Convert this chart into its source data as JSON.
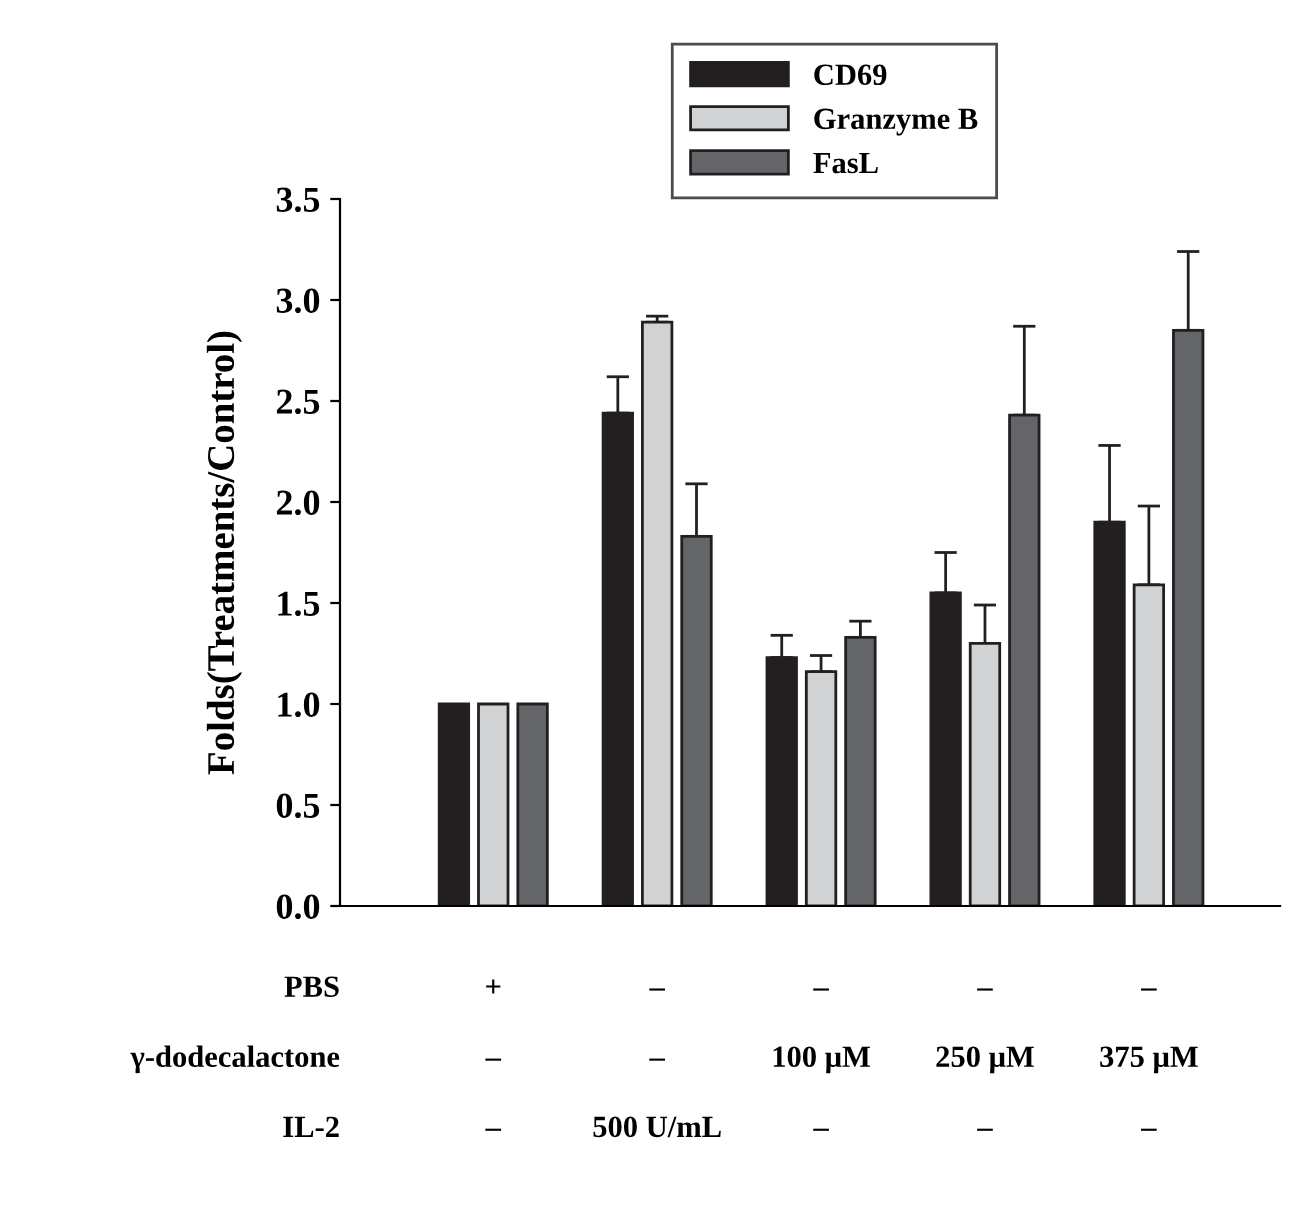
{
  "chart_data": {
    "type": "bar",
    "ylabel": "Folds(Treatments/Control)",
    "categories": [
      "+\n–\n–",
      "–\n–\n500 U/mL",
      "–\n100 μM\n–",
      "–\n250 μM\n–",
      "–\n375 μM\n–"
    ],
    "annotations": [
      "PBS",
      "γ-dodecalactone",
      "IL-2"
    ],
    "series": [
      {
        "name": "CD69",
        "color": "#231f20",
        "values": [
          1.0,
          2.44,
          1.23,
          1.55,
          1.9
        ],
        "errors": [
          null,
          [
            2.44,
            2.62
          ],
          [
            1.23,
            1.34
          ],
          [
            1.55,
            1.75
          ],
          [
            1.9,
            2.28
          ]
        ]
      },
      {
        "name": "Granzyme B",
        "color": "#d1d2d4",
        "values": [
          1.0,
          2.89,
          1.16,
          1.3,
          1.59
        ],
        "errors": [
          null,
          [
            2.89,
            2.92
          ],
          [
            1.16,
            1.24
          ],
          [
            1.3,
            1.49
          ],
          [
            1.59,
            1.98
          ]
        ]
      },
      {
        "name": "FasL",
        "color": "#646569",
        "values": [
          1.0,
          1.83,
          1.33,
          2.43,
          2.85
        ],
        "errors": [
          null,
          [
            1.83,
            2.09
          ],
          [
            1.33,
            1.41
          ],
          [
            2.43,
            2.87
          ],
          [
            2.85,
            3.24
          ]
        ]
      }
    ],
    "ylim": [
      0,
      3.5
    ],
    "yticks": [
      {
        "value": 0,
        "label": "0.0"
      },
      {
        "value": 0.5,
        "label": "0.5"
      },
      {
        "value": 1,
        "label": "1.0"
      },
      {
        "value": 1.5,
        "label": "1.5"
      },
      {
        "value": 2,
        "label": "2.0"
      },
      {
        "value": 2.5,
        "label": "2.5"
      },
      {
        "value": 3,
        "label": "3.0"
      },
      {
        "value": 3.5,
        "label": "3.5"
      }
    ],
    "grid": false,
    "legend": "top"
  }
}
